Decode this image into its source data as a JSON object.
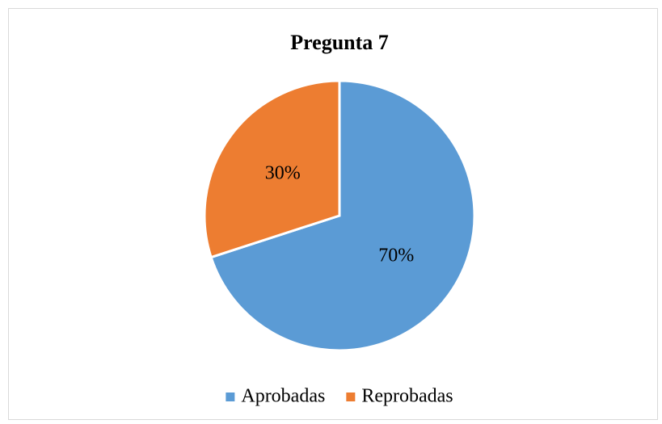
{
  "chart_data": {
    "type": "pie",
    "title": "Pregunta 7",
    "categories": [
      "Aprobadas",
      "Reprobadas"
    ],
    "values": [
      70,
      30
    ],
    "value_labels": [
      "70%",
      "30%"
    ],
    "colors": [
      "#5b9bd5",
      "#ed7d31"
    ],
    "legend": "bottom"
  }
}
